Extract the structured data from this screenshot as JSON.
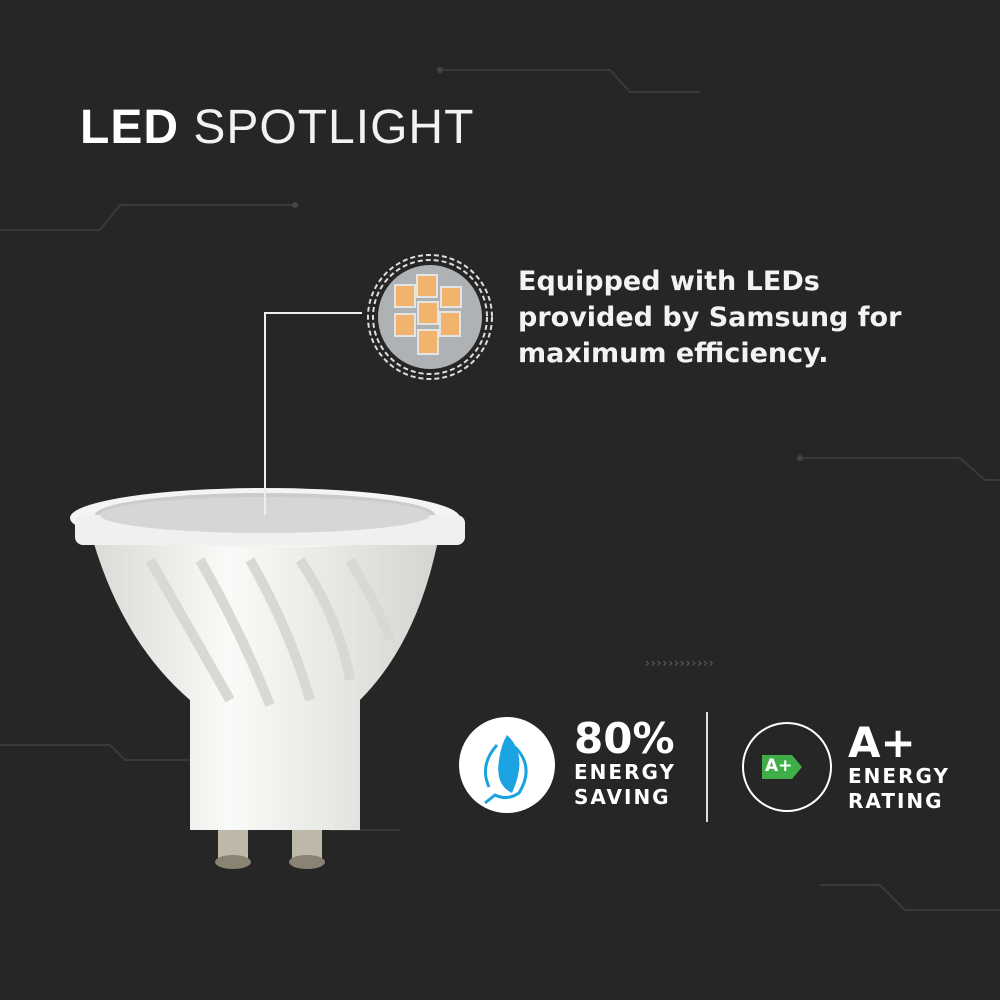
{
  "title": {
    "bold": "LED",
    "light": "SPOTLIGHT"
  },
  "description": "Equipped with LEDs provided by Samsung for maximum efficiency.",
  "decorative_chevrons": "››››››››››››",
  "stats": [
    {
      "icon": "leaf-plug-icon",
      "value": "80%",
      "label_line1": "ENERGY",
      "label_line2": "SAVING",
      "icon_color": "#1aa3e0"
    },
    {
      "icon": "energy-label-icon",
      "badge": "A+",
      "value": "A+",
      "label_line1": "ENERGY",
      "label_line2": "RATING",
      "icon_color": "#3fae49"
    }
  ],
  "colors": {
    "background": "#262626",
    "led_chip": "#f2b36e"
  }
}
